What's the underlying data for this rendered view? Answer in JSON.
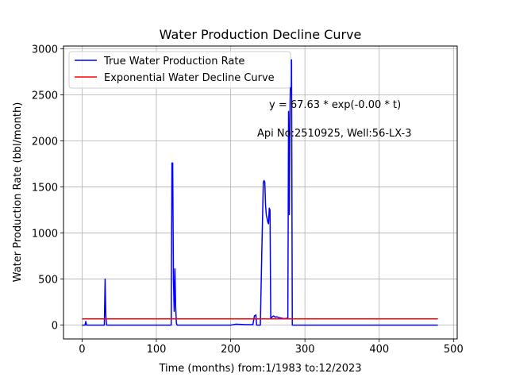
{
  "chart_data": {
    "type": "line",
    "title": "Water Production Decline Curve",
    "xlabel": "Time (months) from:1/1983 to:12/2023",
    "ylabel": "Water Production Rate (bbl/month)",
    "xlim": [
      -25,
      505
    ],
    "ylim": [
      -150,
      3030
    ],
    "x_ticks": [
      0,
      100,
      200,
      300,
      400,
      500
    ],
    "y_ticks": [
      0,
      500,
      1000,
      1500,
      2000,
      2500,
      3000
    ],
    "grid": true,
    "legend_position": "top-left",
    "annotations": [
      "y = 67.63 * exp(-0.00 * t)",
      "Api No:2510925, Well:56-LX-3"
    ],
    "series": [
      {
        "name": "True Water Production Rate",
        "color": "#0000ff",
        "points": [
          [
            0,
            0
          ],
          [
            4,
            0
          ],
          [
            5,
            40
          ],
          [
            6,
            0
          ],
          [
            30,
            0
          ],
          [
            31,
            500
          ],
          [
            32,
            100
          ],
          [
            33,
            0
          ],
          [
            120,
            0
          ],
          [
            121,
            1760
          ],
          [
            122,
            1760
          ],
          [
            123,
            500
          ],
          [
            124,
            150
          ],
          [
            125,
            610
          ],
          [
            126,
            200
          ],
          [
            127,
            20
          ],
          [
            128,
            0
          ],
          [
            200,
            0
          ],
          [
            207,
            10
          ],
          [
            220,
            5
          ],
          [
            230,
            5
          ],
          [
            232,
            100
          ],
          [
            234,
            110
          ],
          [
            235,
            0
          ],
          [
            240,
            0
          ],
          [
            242,
            800
          ],
          [
            244,
            1550
          ],
          [
            245,
            1570
          ],
          [
            246,
            1550
          ],
          [
            247,
            1300
          ],
          [
            248,
            1200
          ],
          [
            250,
            1120
          ],
          [
            251,
            1100
          ],
          [
            252,
            1270
          ],
          [
            253,
            1250
          ],
          [
            254,
            70
          ],
          [
            256,
            90
          ],
          [
            258,
            100
          ],
          [
            260,
            85
          ],
          [
            262,
            90
          ],
          [
            266,
            80
          ],
          [
            272,
            70
          ],
          [
            277,
            75
          ],
          [
            278,
            2320
          ],
          [
            279,
            1200
          ],
          [
            280,
            2400
          ],
          [
            281,
            2820
          ],
          [
            282,
            2880
          ],
          [
            283,
            0
          ],
          [
            479,
            0
          ]
        ]
      },
      {
        "name": "Exponential Water Decline Curve",
        "color": "#ff0000",
        "points": [
          [
            0,
            67.63
          ],
          [
            479,
            67.63
          ]
        ]
      }
    ]
  }
}
